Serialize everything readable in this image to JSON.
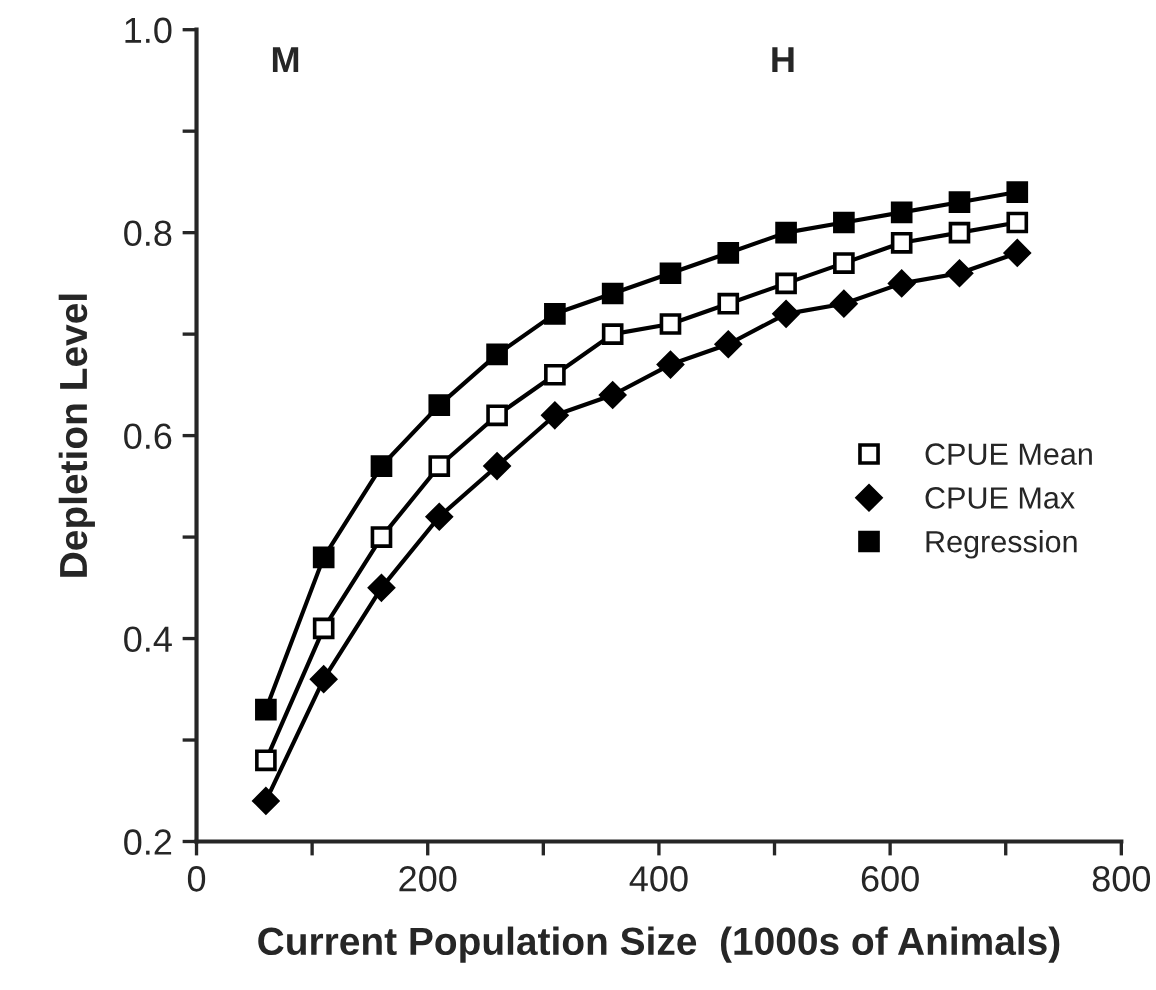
{
  "chart_data": {
    "type": "line",
    "xlabel": "Current Population Size  (1000s of Animals)",
    "ylabel": "Depletion Level",
    "annotations": [
      "M",
      "H"
    ],
    "x": [
      60,
      110,
      160,
      210,
      260,
      310,
      360,
      410,
      460,
      510,
      560,
      610,
      660,
      710
    ],
    "series": [
      {
        "name": "CPUE Mean",
        "color": "#000000",
        "marker": "square",
        "values": [
          0.28,
          0.41,
          0.5,
          0.57,
          0.62,
          0.66,
          0.7,
          0.71,
          0.73,
          0.75,
          0.77,
          0.79,
          0.8,
          0.81
        ]
      },
      {
        "name": "CPUE Max",
        "color": "#000000",
        "marker": "diamond",
        "values": [
          0.24,
          0.36,
          0.45,
          0.52,
          0.57,
          0.62,
          0.64,
          0.67,
          0.69,
          0.72,
          0.73,
          0.75,
          0.76,
          0.78
        ]
      },
      {
        "name": "Regression",
        "color": "#000000",
        "marker": "square",
        "values": [
          0.33,
          0.48,
          0.57,
          0.63,
          0.68,
          0.72,
          0.74,
          0.76,
          0.78,
          0.8,
          0.81,
          0.82,
          0.83,
          0.84
        ]
      }
    ],
    "xlim": [
      0,
      800
    ],
    "xticks": [
      0,
      {
        "value": 100,
        "label": null
      },
      200,
      {
        "value": 300,
        "label": null
      },
      400,
      {
        "value": 500,
        "label": null
      },
      600,
      {
        "value": 700,
        "label": null
      },
      800
    ],
    "ylim": [
      0.2,
      1.0
    ],
    "yticks": [
      0.2,
      {
        "value": 0.3,
        "label": null
      },
      0.4,
      {
        "value": 0.5,
        "label": null
      },
      0.6,
      {
        "value": 0.7,
        "label": null
      },
      0.8,
      {
        "value": 0.9,
        "label": null
      },
      {
        "value": 1.0,
        "label": "1.0"
      }
    ],
    "legend": "right",
    "grid": false,
    "line_style": "solid"
  }
}
